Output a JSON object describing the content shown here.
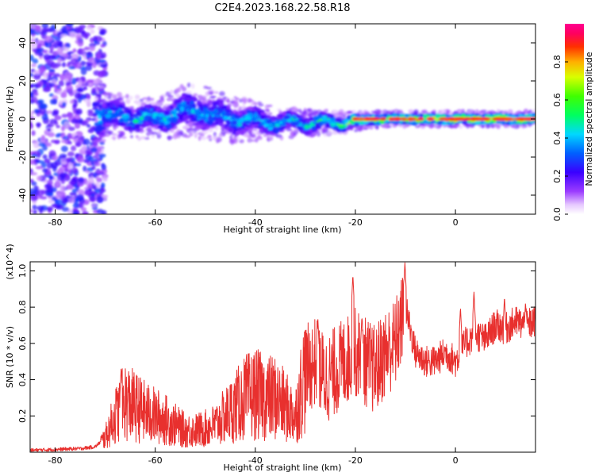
{
  "title": "C2E4.2023.168.22.58.R18",
  "colors": {
    "snr_line": "#e8302e",
    "spectrum_background": "#ffffff",
    "axis": "#000000"
  },
  "chart_data": [
    {
      "type": "heatmap",
      "xlabel": "Height of straight line (km)",
      "ylabel": "Frequency (Hz)",
      "xlim": [
        -85,
        16
      ],
      "ylim": [
        -50,
        50
      ],
      "x_ticks": [
        -80,
        -60,
        -40,
        -20,
        0
      ],
      "y_ticks": [
        -40,
        -20,
        0,
        20,
        40
      ],
      "colormap": "rainbow (white → violet → blue → cyan → green → yellow → red → magenta)",
      "colorbar": {
        "label": "Normalized spectral amplitude",
        "range": [
          0.0,
          1.0
        ],
        "ticks": [
          0.0,
          0.2,
          0.4,
          0.6,
          0.8
        ]
      },
      "description_points": [
        {
          "x": -80,
          "spread_hz": 45,
          "center_hz": 0,
          "amplitude": 0.35
        },
        {
          "x": -70,
          "spread_hz": 6,
          "center_hz": 2,
          "amplitude": 0.45
        },
        {
          "x": -60,
          "spread_hz": 5,
          "center_hz": 0,
          "amplitude": 0.5
        },
        {
          "x": -53,
          "spread_hz": 7,
          "center_hz": 5,
          "amplitude": 0.45
        },
        {
          "x": -45,
          "spread_hz": 6,
          "center_hz": 0,
          "amplitude": 0.45
        },
        {
          "x": -35,
          "spread_hz": 4,
          "center_hz": -2,
          "amplitude": 0.5
        },
        {
          "x": -25,
          "spread_hz": 3,
          "center_hz": -2,
          "amplitude": 0.6
        },
        {
          "x": -15,
          "spread_hz": 2,
          "center_hz": 0,
          "amplitude": 0.85
        },
        {
          "x": 0,
          "spread_hz": 2,
          "center_hz": 0,
          "amplitude": 0.9
        },
        {
          "x": 15,
          "spread_hz": 2,
          "center_hz": 0,
          "amplitude": 0.9
        }
      ]
    },
    {
      "type": "line",
      "xlabel": "Height of straight line (km)",
      "ylabel": "SNR (10 * v/v)",
      "y_multiplier": "(x10^4)",
      "xlim": [
        -85,
        16
      ],
      "ylim": [
        0,
        1.05
      ],
      "x_ticks": [
        -80,
        -60,
        -40,
        -20,
        0
      ],
      "y_ticks": [
        0.2,
        0.4,
        0.6,
        0.8,
        1.0
      ],
      "series": [
        {
          "x": [
            -85,
            -80,
            -75,
            -72,
            -70,
            -68,
            -66,
            -64,
            -62,
            -60,
            -58,
            -56,
            -54,
            -52,
            -50,
            -48,
            -46,
            -44,
            -42,
            -40,
            -38,
            -36,
            -34,
            -32,
            -30,
            -28,
            -26,
            -24,
            -22,
            -20,
            -18,
            -16,
            -14,
            -12,
            -10,
            -8,
            -6,
            -4,
            -2,
            0,
            2,
            4,
            6,
            8,
            10,
            12,
            14,
            16
          ],
          "values": [
            0.01,
            0.015,
            0.02,
            0.03,
            0.08,
            0.2,
            0.28,
            0.25,
            0.22,
            0.2,
            0.18,
            0.15,
            0.12,
            0.12,
            0.13,
            0.15,
            0.2,
            0.25,
            0.3,
            0.32,
            0.3,
            0.3,
            0.25,
            0.2,
            0.45,
            0.5,
            0.4,
            0.45,
            0.5,
            0.55,
            0.5,
            0.45,
            0.55,
            0.6,
            0.8,
            0.55,
            0.5,
            0.5,
            0.55,
            0.5,
            0.6,
            0.65,
            0.62,
            0.7,
            0.68,
            0.72,
            0.7,
            0.72
          ],
          "peaks": [
            {
              "x": -66.8,
              "value": 0.47
            },
            {
              "x": -27.5,
              "value": 0.74
            },
            {
              "x": -20.5,
              "value": 0.98
            },
            {
              "x": -18.7,
              "value": 0.75
            },
            {
              "x": -10.1,
              "value": 1.05
            },
            {
              "x": 1.0,
              "value": 0.8
            },
            {
              "x": 3.7,
              "value": 0.89
            },
            {
              "x": 9.8,
              "value": 0.86
            },
            {
              "x": 14.0,
              "value": 0.83
            }
          ]
        }
      ]
    }
  ]
}
